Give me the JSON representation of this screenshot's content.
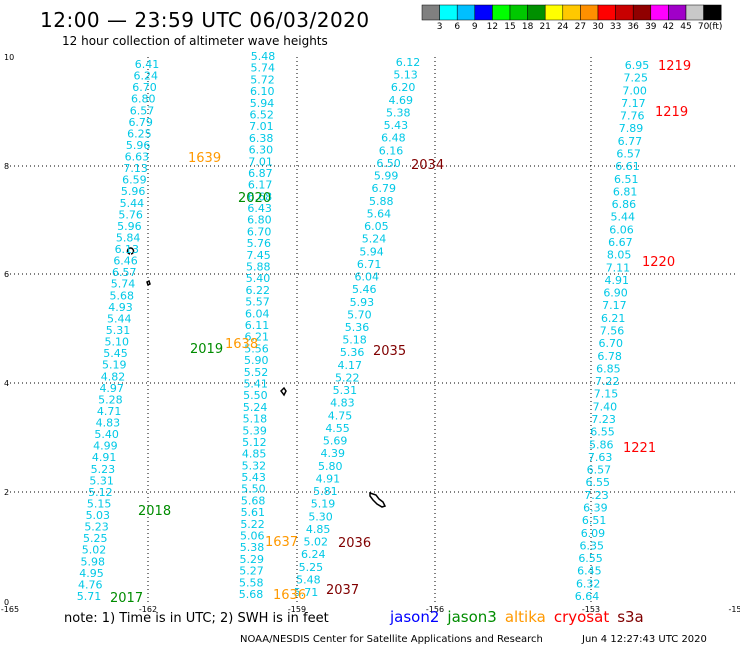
{
  "title": "12:00 — 23:59 UTC 06/03/2020",
  "subtitle": "12 hour collection of altimeter wave heights",
  "colorbar": {
    "colors": [
      "#808080",
      "#00ffff",
      "#00bfff",
      "#0000ff",
      "#00ff00",
      "#00c800",
      "#009000",
      "#ffff00",
      "#ffc800",
      "#ff9000",
      "#ff0000",
      "#c80000",
      "#900000",
      "#ff00ff",
      "#a000c8",
      "#c8c8c8",
      "#000000"
    ],
    "labels": [
      "3",
      "6",
      "9",
      "12",
      "15",
      "18",
      "21",
      "24",
      "27",
      "30",
      "33",
      "36",
      "39",
      "42",
      "45",
      "70",
      "(ft)"
    ]
  },
  "axes": {
    "x_ticks": [
      "-165",
      "-162",
      "-159",
      "-156",
      "-153",
      "-15"
    ],
    "y_ticks": [
      "0",
      "2",
      "4",
      "6",
      "8",
      "10"
    ]
  },
  "tracks": {
    "color": "#00c8e6",
    "a": [
      "6.41",
      "6.24",
      "6.70",
      "6.80",
      "6.57",
      "6.79",
      "6.25",
      "5.96",
      "6.63",
      "7.13",
      "6.59",
      "5.96",
      "5.44",
      "5.76",
      "5.96",
      "5.84",
      "6.13",
      "6.46",
      "6.57",
      "5.74",
      "5.68",
      "4.93",
      "5.44",
      "5.31",
      "5.10",
      "5.45",
      "5.19",
      "4.82",
      "4.97",
      "5.28",
      "4.71",
      "4.83",
      "5.40",
      "4.99",
      "4.91",
      "5.23",
      "5.31",
      "5.12",
      "5.15",
      "5.03",
      "5.23",
      "5.25",
      "5.02",
      "5.98",
      "4.95",
      "4.76",
      "5.71"
    ],
    "b": [
      "5.48",
      "5.74",
      "5.72",
      "6.10",
      "5.94",
      "6.52",
      "7.01",
      "6.38",
      "6.30",
      "7.01",
      "6.87",
      "6.17",
      "6.68",
      "6.43",
      "6.80",
      "6.70",
      "5.76",
      "7.45",
      "5.88",
      "5.40",
      "6.22",
      "5.57",
      "6.04",
      "6.11",
      "6.21",
      "5.56",
      "5.90",
      "5.52",
      "5.41",
      "5.50",
      "5.24",
      "5.18",
      "5.39",
      "5.12",
      "4.85",
      "5.32",
      "5.43",
      "5.50",
      "5.68",
      "5.61",
      "5.22",
      "5.06",
      "5.38",
      "5.29",
      "5.27",
      "5.58",
      "5.68"
    ],
    "c": [
      "6.12",
      "5.13",
      "6.20",
      "4.69",
      "5.38",
      "5.43",
      "6.48",
      "6.16",
      "6.50",
      "5.99",
      "6.79",
      "5.88",
      "5.64",
      "6.05",
      "5.24",
      "5.94",
      "6.71",
      "6.04",
      "5.46",
      "5.93",
      "5.70",
      "5.36",
      "5.18",
      "5.36",
      "4.17",
      "5.22",
      "5.31",
      "4.83",
      "4.75",
      "4.55",
      "5.69",
      "4.39",
      "5.80",
      "4.91",
      "5.81",
      "5.19",
      "5.30",
      "4.85",
      "5.02",
      "6.24",
      "5.25",
      "5.48",
      "5.71"
    ],
    "d": [
      "6.95",
      "7.25",
      "7.00",
      "7.17",
      "7.76",
      "7.89",
      "6.77",
      "6.57",
      "6.61",
      "6.51",
      "6.81",
      "6.86",
      "5.44",
      "6.06",
      "6.67",
      "8.05",
      "7.11",
      "4.91",
      "6.90",
      "7.17",
      "6.21",
      "7.56",
      "6.70",
      "6.78",
      "6.85",
      "7.22",
      "7.15",
      "7.40",
      "7.23",
      "6.55",
      "5.86",
      "7.63",
      "6.57",
      "6.55",
      "7.23",
      "6.39",
      "6.51",
      "6.09",
      "6.35",
      "6.55",
      "6.45",
      "6.32",
      "6.64"
    ]
  },
  "time_labels": [
    {
      "text": "1639",
      "color": "#ff9900"
    },
    {
      "text": "2020",
      "color": "#008c00"
    },
    {
      "text": "2034",
      "color": "#800000"
    },
    {
      "text": "1219",
      "color": "#ff0000"
    },
    {
      "text": "1219",
      "color": "#ff0000"
    },
    {
      "text": "1220",
      "color": "#ff0000"
    },
    {
      "text": "1638",
      "color": "#ff9900"
    },
    {
      "text": "2019",
      "color": "#008c00"
    },
    {
      "text": "2035",
      "color": "#800000"
    },
    {
      "text": "1221",
      "color": "#ff0000"
    },
    {
      "text": "2018",
      "color": "#008c00"
    },
    {
      "text": "1637",
      "color": "#ff9900"
    },
    {
      "text": "2036",
      "color": "#800000"
    },
    {
      "text": "1636",
      "color": "#ff9900"
    },
    {
      "text": "2037",
      "color": "#800000"
    },
    {
      "text": "2017",
      "color": "#008c00"
    }
  ],
  "note": "note:  1) Time is in UTC;  2) SWH is in feet",
  "legend": [
    {
      "name": "jason2",
      "color": "#0000ff"
    },
    {
      "name": "jason3",
      "color": "#008c00"
    },
    {
      "name": "altika",
      "color": "#ff9900"
    },
    {
      "name": "cryosat",
      "color": "#ff0000"
    },
    {
      "name": "s3a",
      "color": "#800000"
    }
  ],
  "footer": "NOAA/NESDIS Center for Satellite Applications and Research",
  "footer_time": "Jun  4 12:27:43 UTC 2020"
}
